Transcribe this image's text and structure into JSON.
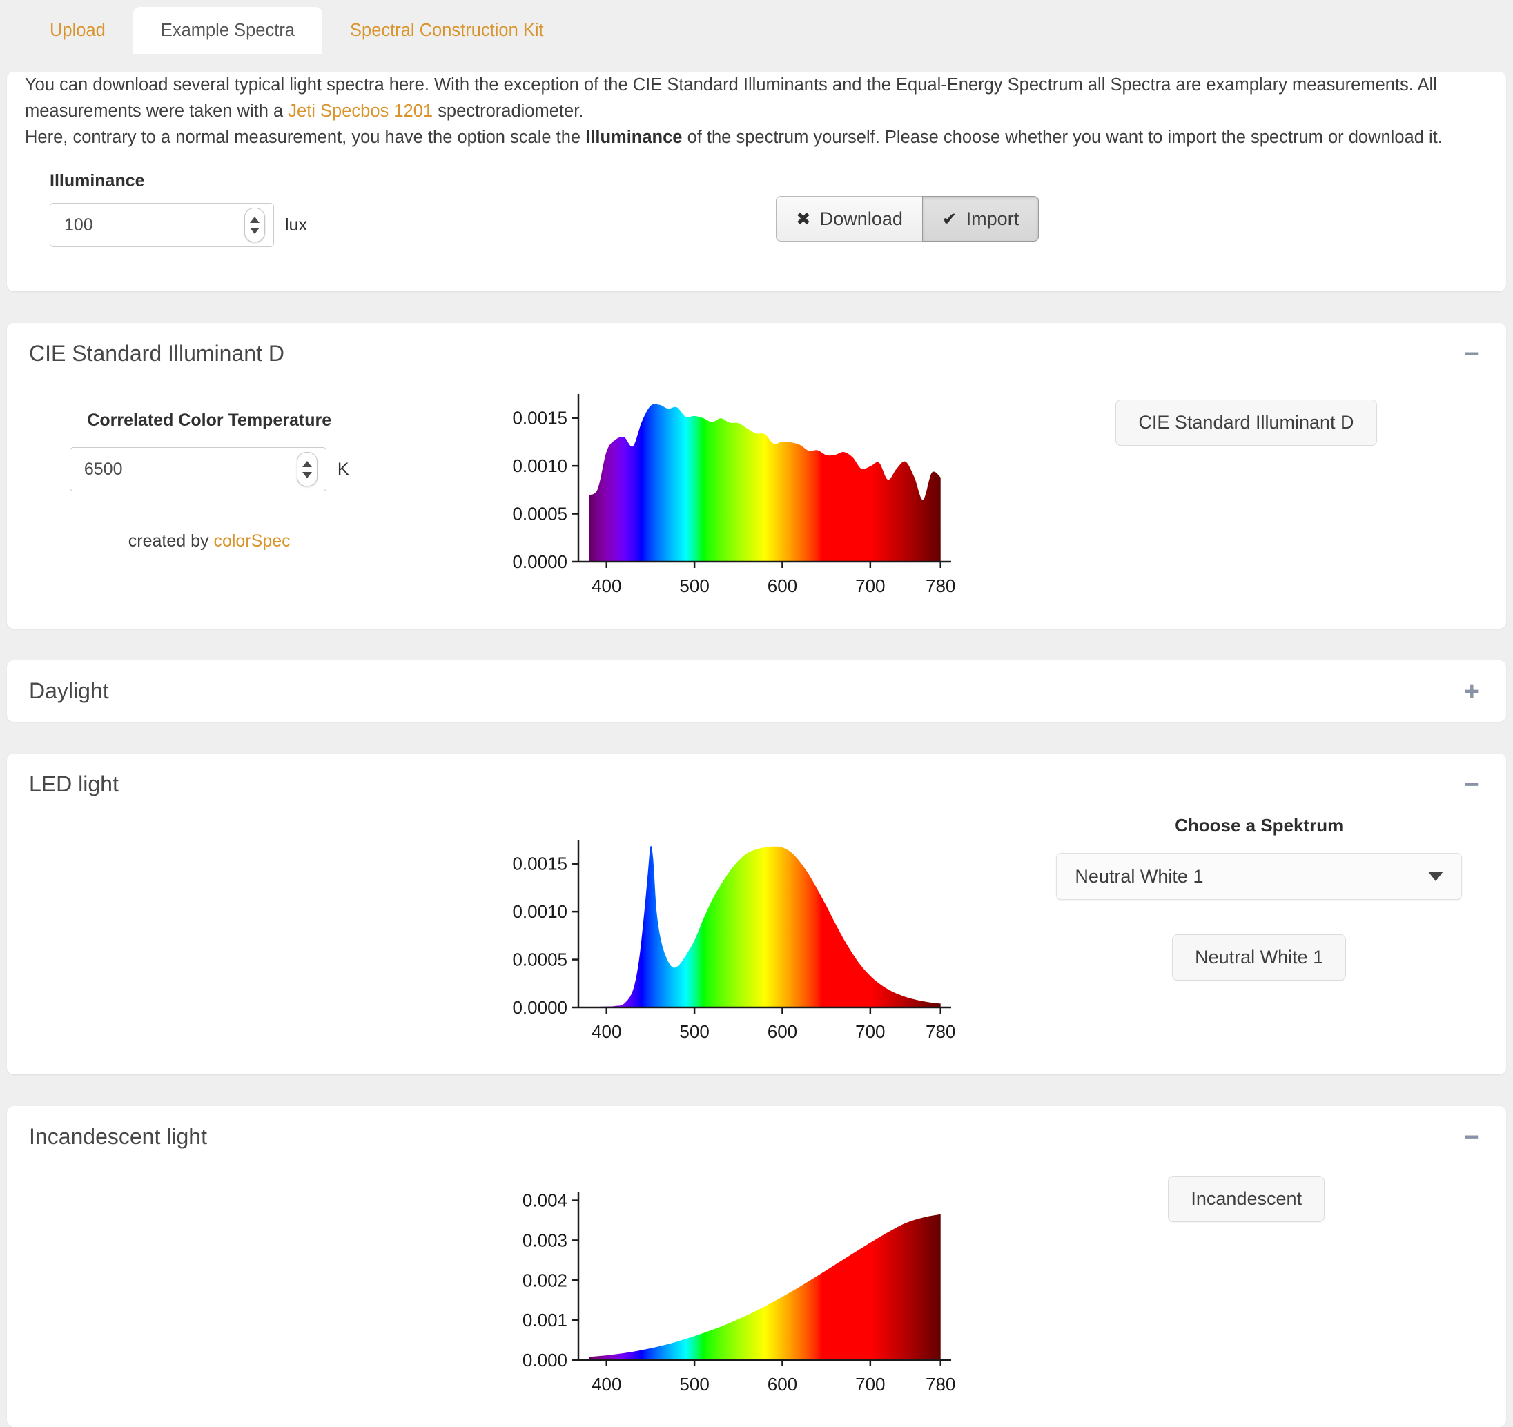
{
  "tabs": [
    {
      "label": "Upload"
    },
    {
      "label": "Example Spectra"
    },
    {
      "label": "Spectral Construction Kit"
    }
  ],
  "intro": {
    "p1_before_link": "You can download several typical light spectra here. With the exception of the CIE Standard Illuminants and the Equal-Energy Spectrum all Spectra are examplary measurements. All measurements were taken with a ",
    "p1_link": "Jeti Specbos 1201",
    "p1_after_link": " spectroradiometer.",
    "p2_before_bold": "Here, contrary to a normal measurement, you have the option scale the ",
    "p2_bold": "Illuminance",
    "p2_after_bold": " of the spectrum yourself. Please choose whether you want to import the spectrum or download it."
  },
  "illuminance": {
    "label": "Illuminance",
    "value": "100",
    "unit": "lux"
  },
  "actions": {
    "download_label": "Download",
    "import_label": "Import",
    "download_icon": "✖",
    "import_icon": "✔"
  },
  "panels": {
    "cie": {
      "title": "CIE Standard Illuminant D",
      "collapse": "−",
      "cct_label": "Correlated Color Temperature",
      "cct_value": "6500",
      "cct_unit": "K",
      "credit_text": "created by ",
      "credit_link": "colorSpec",
      "button_label": "CIE Standard Illuminant D"
    },
    "daylight": {
      "title": "Daylight",
      "collapse": "+"
    },
    "led": {
      "title": "LED light",
      "collapse": "−",
      "choose_label": "Choose a Spektrum",
      "select_value": "Neutral White 1",
      "button_label": "Neutral White 1"
    },
    "incandescent": {
      "title": "Incandescent light",
      "collapse": "−",
      "button_label": "Incandescent"
    }
  },
  "colors": {
    "accent_orange": "#d9942d",
    "page_bg": "#efeff0",
    "panel_bg": "#ffffff",
    "collapse_icon_gray": "#8a93a6",
    "axis_black": "#1a1a1a"
  },
  "chart_data": [
    {
      "id": "cie",
      "type": "area",
      "title": "CIE Standard Illuminant D",
      "xlabel": "",
      "ylabel": "",
      "fill": "spectral-gradient",
      "grid": false,
      "xlim": [
        368,
        792
      ],
      "ylim": [
        0,
        0.00175
      ],
      "xticks": [
        400,
        500,
        600,
        700,
        780
      ],
      "xtick_labels": [
        "400",
        "500",
        "600",
        "700",
        "780"
      ],
      "yticks": [
        0,
        0.0005,
        0.001,
        0.0015
      ],
      "ytick_labels": [
        "0.0000",
        "0.0005",
        "0.0010",
        "0.0015"
      ],
      "points": [
        [
          380,
          0.000695
        ],
        [
          390,
          0.00076
        ],
        [
          400,
          0.00115
        ],
        [
          410,
          0.001272
        ],
        [
          420,
          0.001299
        ],
        [
          430,
          0.001205
        ],
        [
          440,
          0.001458
        ],
        [
          450,
          0.001626
        ],
        [
          460,
          0.001638
        ],
        [
          470,
          0.001597
        ],
        [
          480,
          0.001611
        ],
        [
          490,
          0.001512
        ],
        [
          500,
          0.00152
        ],
        [
          510,
          0.001498
        ],
        [
          520,
          0.001457
        ],
        [
          530,
          0.001497
        ],
        [
          540,
          0.001451
        ],
        [
          550,
          0.001446
        ],
        [
          560,
          0.00139
        ],
        [
          570,
          0.001339
        ],
        [
          580,
          0.001331
        ],
        [
          590,
          0.001233
        ],
        [
          600,
          0.001251
        ],
        [
          610,
          0.001245
        ],
        [
          620,
          0.001219
        ],
        [
          630,
          0.001158
        ],
        [
          640,
          0.001163
        ],
        [
          650,
          0.001112
        ],
        [
          660,
          0.001115
        ],
        [
          670,
          0.001144
        ],
        [
          680,
          0.001088
        ],
        [
          690,
          0.000969
        ],
        [
          700,
          0.000995
        ],
        [
          710,
          0.001033
        ],
        [
          720,
          0.000856
        ],
        [
          730,
          0.000971
        ],
        [
          740,
          0.001044
        ],
        [
          750,
          0.000884
        ],
        [
          760,
          0.000645
        ],
        [
          770,
          0.000929
        ],
        [
          780,
          0.000881
        ]
      ]
    },
    {
      "id": "led",
      "type": "area",
      "title": "LED light — Neutral White 1",
      "xlabel": "",
      "ylabel": "",
      "fill": "spectral-gradient",
      "grid": false,
      "xlim": [
        368,
        792
      ],
      "ylim": [
        0,
        0.00175
      ],
      "xticks": [
        400,
        500,
        600,
        700,
        780
      ],
      "xtick_labels": [
        "400",
        "500",
        "600",
        "700",
        "780"
      ],
      "yticks": [
        0,
        0.0005,
        0.001,
        0.0015
      ],
      "ytick_labels": [
        "0.0000",
        "0.0005",
        "0.0010",
        "0.0015"
      ],
      "points": [
        [
          380,
          5e-06
        ],
        [
          400,
          1e-05
        ],
        [
          410,
          1.5e-05
        ],
        [
          420,
          4e-05
        ],
        [
          430,
          0.00018
        ],
        [
          437,
          0.0005
        ],
        [
          443,
          0.001
        ],
        [
          447,
          0.0014
        ],
        [
          450,
          0.00168
        ],
        [
          453,
          0.00155
        ],
        [
          457,
          0.001
        ],
        [
          462,
          0.0007
        ],
        [
          468,
          0.00052
        ],
        [
          475,
          0.00042
        ],
        [
          482,
          0.00044
        ],
        [
          490,
          0.00054
        ],
        [
          500,
          0.0007
        ],
        [
          510,
          0.00092
        ],
        [
          520,
          0.00112
        ],
        [
          530,
          0.00128
        ],
        [
          540,
          0.00142
        ],
        [
          550,
          0.00153
        ],
        [
          560,
          0.00161
        ],
        [
          570,
          0.00165
        ],
        [
          580,
          0.00167
        ],
        [
          590,
          0.00168
        ],
        [
          600,
          0.00167
        ],
        [
          610,
          0.00162
        ],
        [
          620,
          0.00152
        ],
        [
          630,
          0.00139
        ],
        [
          640,
          0.00123
        ],
        [
          650,
          0.00106
        ],
        [
          660,
          0.00088
        ],
        [
          670,
          0.00071
        ],
        [
          680,
          0.00056
        ],
        [
          690,
          0.00043
        ],
        [
          700,
          0.00033
        ],
        [
          710,
          0.00025
        ],
        [
          720,
          0.00019
        ],
        [
          730,
          0.000145
        ],
        [
          740,
          0.00011
        ],
        [
          750,
          8.5e-05
        ],
        [
          760,
          6.5e-05
        ],
        [
          770,
          5e-05
        ],
        [
          780,
          4e-05
        ]
      ]
    },
    {
      "id": "incandescent",
      "type": "area",
      "title": "Incandescent light",
      "xlabel": "",
      "ylabel": "",
      "fill": "spectral-gradient",
      "grid": false,
      "xlim": [
        368,
        792
      ],
      "ylim": [
        0,
        0.0042
      ],
      "xticks": [
        400,
        500,
        600,
        700,
        780
      ],
      "xtick_labels": [
        "400",
        "500",
        "600",
        "700",
        "780"
      ],
      "yticks": [
        0,
        0.001,
        0.002,
        0.003,
        0.004
      ],
      "ytick_labels": [
        "0.000",
        "0.001",
        "0.002",
        "0.003",
        "0.004"
      ],
      "points": [
        [
          380,
          8e-05
        ],
        [
          400,
          0.00012
        ],
        [
          420,
          0.000175
        ],
        [
          440,
          0.00025
        ],
        [
          460,
          0.000345
        ],
        [
          480,
          0.00046
        ],
        [
          500,
          0.0006
        ],
        [
          520,
          0.000755
        ],
        [
          540,
          0.00093
        ],
        [
          560,
          0.001125
        ],
        [
          580,
          0.001345
        ],
        [
          600,
          0.001585
        ],
        [
          620,
          0.00184
        ],
        [
          640,
          0.00211
        ],
        [
          660,
          0.00239
        ],
        [
          680,
          0.002665
        ],
        [
          700,
          0.00294
        ],
        [
          720,
          0.0032
        ],
        [
          740,
          0.00343
        ],
        [
          760,
          0.00357
        ],
        [
          780,
          0.00365
        ]
      ]
    }
  ]
}
